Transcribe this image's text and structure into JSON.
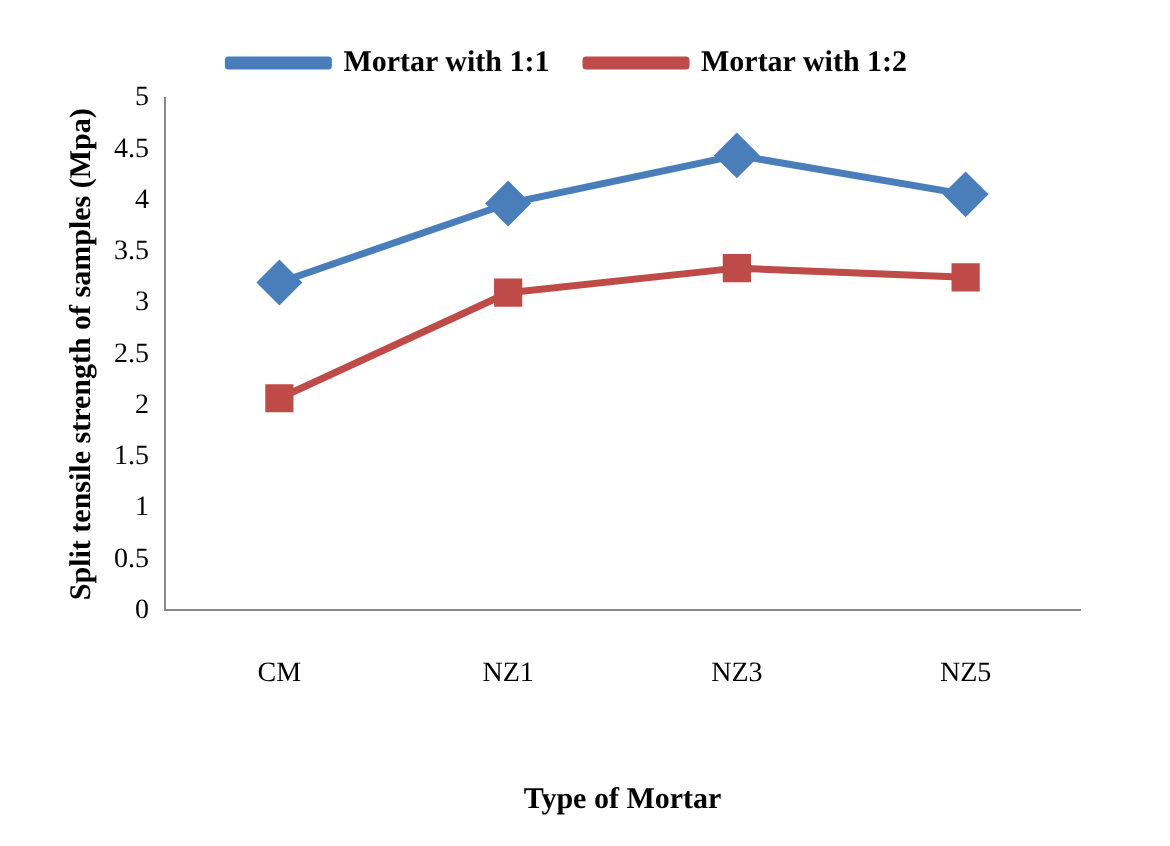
{
  "chart_data": {
    "type": "line",
    "xlabel": "Type of Mortar",
    "ylabel": "Split tensile strength of samples (Mpa)",
    "categories": [
      "CM",
      "NZ1",
      "NZ3",
      "NZ5"
    ],
    "series": [
      {
        "name": "Mortar with 1:1",
        "color": "#4a7ebb",
        "marker": "diamond",
        "values": [
          3.2,
          3.97,
          4.44,
          4.06
        ]
      },
      {
        "name": "Mortar with 1:2",
        "color": "#be4b48",
        "marker": "square",
        "values": [
          2.07,
          3.1,
          3.34,
          3.25
        ]
      }
    ],
    "ylim": [
      0,
      5
    ],
    "yticks": [
      0,
      0.5,
      1,
      1.5,
      2,
      2.5,
      3,
      3.5,
      4,
      4.5,
      5
    ],
    "grid": false,
    "legend": "top",
    "line_style": "solid"
  }
}
